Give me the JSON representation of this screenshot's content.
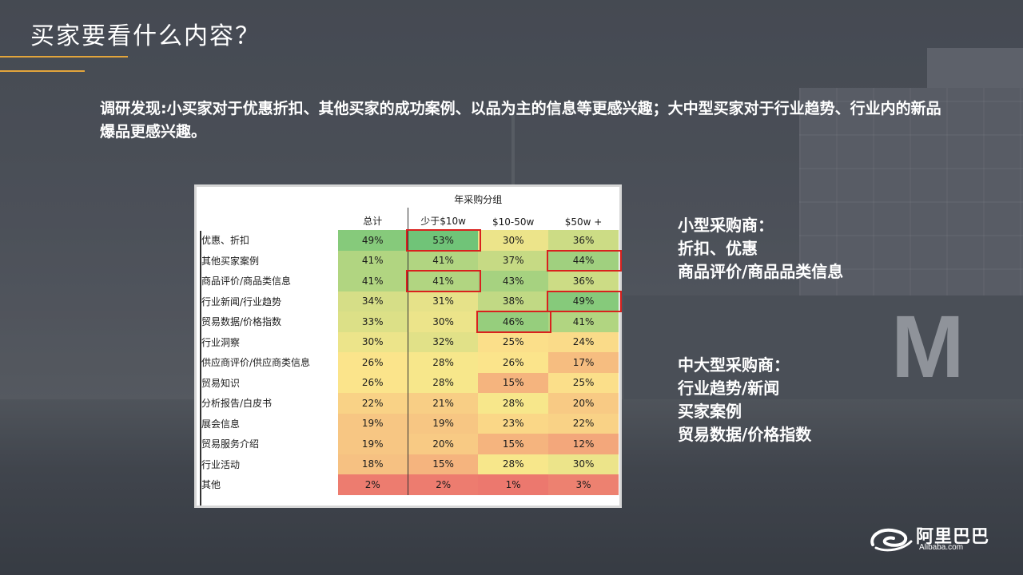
{
  "slide": {
    "title": "买家要看什么内容？",
    "intro": "调研发现:小买家对于优惠折扣、其他买家的成功案例、以品为主的信息等更感兴趣；大中型买家对于行业趋势、行业内的新品爆品更感兴趣。",
    "accent_color": "#e3a53b"
  },
  "table": {
    "group_header": "年采购分组",
    "columns": [
      "总计",
      "少于$10w",
      "$10-50w",
      "$50w +"
    ],
    "rows": [
      {
        "label": "优惠、折扣",
        "values": [
          "49%",
          "53%",
          "30%",
          "36%"
        ]
      },
      {
        "label": "其他买家案例",
        "values": [
          "41%",
          "41%",
          "37%",
          "44%"
        ]
      },
      {
        "label": "商品评价/商品类信息",
        "values": [
          "41%",
          "41%",
          "43%",
          "36%"
        ]
      },
      {
        "label": "行业新闻/行业趋势",
        "values": [
          "34%",
          "31%",
          "38%",
          "49%"
        ]
      },
      {
        "label": "贸易数据/价格指数",
        "values": [
          "33%",
          "30%",
          "46%",
          "41%"
        ]
      },
      {
        "label": "行业洞察",
        "values": [
          "30%",
          "32%",
          "25%",
          "24%"
        ]
      },
      {
        "label": "供应商评价/供应商类信息",
        "values": [
          "26%",
          "28%",
          "26%",
          "17%"
        ]
      },
      {
        "label": "贸易知识",
        "values": [
          "26%",
          "28%",
          "15%",
          "25%"
        ]
      },
      {
        "label": "分析报告/白皮书",
        "values": [
          "22%",
          "21%",
          "28%",
          "20%"
        ]
      },
      {
        "label": "展会信息",
        "values": [
          "19%",
          "19%",
          "23%",
          "22%"
        ]
      },
      {
        "label": "贸易服务介绍",
        "values": [
          "19%",
          "20%",
          "15%",
          "12%"
        ]
      },
      {
        "label": "行业活动",
        "values": [
          "18%",
          "15%",
          "28%",
          "30%"
        ]
      },
      {
        "label": "其他",
        "values": [
          "2%",
          "2%",
          "1%",
          "3%"
        ]
      }
    ],
    "highlight_color": "#d9211e"
  },
  "small_buyers": {
    "title": "小型采购商：",
    "items": [
      "折扣、优惠",
      "商品评价/商品品类信息"
    ]
  },
  "large_buyers": {
    "title": "中大型采购商：",
    "items": [
      "行业趋势/新闻",
      "买家案例",
      "贸易数据/价格指数"
    ]
  },
  "logo": {
    "name": "阿里巴巴",
    "domain": "Alibaba.com"
  }
}
